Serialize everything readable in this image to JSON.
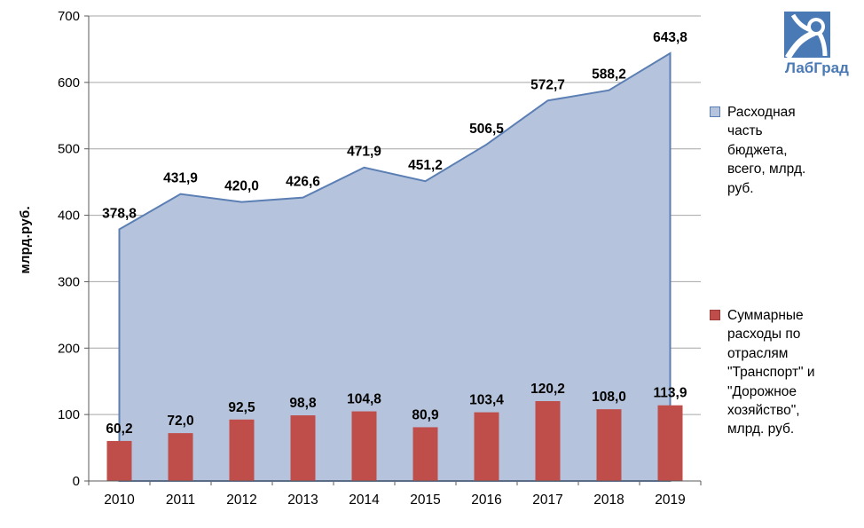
{
  "logo": {
    "text": "ЛабГрад"
  },
  "chart_data": {
    "type": "combo",
    "categories": [
      "2010",
      "2011",
      "2012",
      "2013",
      "2014",
      "2015",
      "2016",
      "2017",
      "2018",
      "2019"
    ],
    "series": [
      {
        "name": "Расходная часть бюджета, всего, млрд. руб.",
        "type": "area",
        "color": "#b5c4dc",
        "stroke": "#5b7fb4",
        "values": [
          378.8,
          431.9,
          420.0,
          426.6,
          471.9,
          451.2,
          506.5,
          572.7,
          588.2,
          643.8
        ]
      },
      {
        "name": "Суммарные расходы по отраслям \"Транспорт\" и \"Дорожное хозяйство\", млрд. руб.",
        "type": "bar",
        "color": "#bf4e4b",
        "stroke": "#9e3b38",
        "values": [
          60.2,
          72.0,
          92.5,
          98.8,
          104.8,
          80.9,
          103.4,
          120.2,
          108.0,
          113.9
        ]
      }
    ],
    "title": "",
    "xlabel": "",
    "ylabel": "млрд.руб.",
    "ylim": [
      0,
      700
    ],
    "yticks": [
      0,
      100,
      200,
      300,
      400,
      500,
      600,
      700
    ],
    "grid": true,
    "legend_position": "right",
    "decimal_separator": ","
  }
}
